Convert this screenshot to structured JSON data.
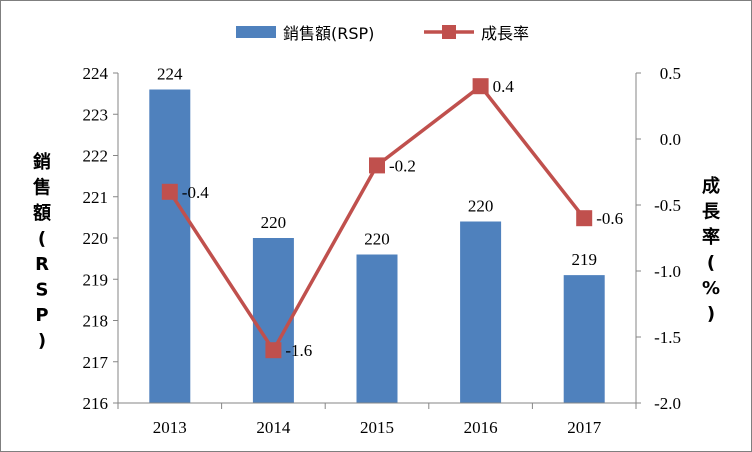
{
  "chart_data": {
    "type": "bar",
    "categories": [
      "2013",
      "2014",
      "2015",
      "2016",
      "2017"
    ],
    "series": [
      {
        "name": "銷售額(RSP)",
        "kind": "bar",
        "axis": "left",
        "color": "#4f81bd",
        "values": [
          223.6,
          220.0,
          219.6,
          220.4,
          219.1
        ],
        "data_labels": [
          "224",
          "220",
          "220",
          "220",
          "219"
        ]
      },
      {
        "name": "成長率",
        "kind": "line",
        "axis": "right",
        "color": "#c0504d",
        "marker": "square",
        "values": [
          -0.4,
          -1.6,
          -0.2,
          0.4,
          -0.6
        ],
        "data_labels": [
          "-0.4",
          "-1.6",
          "-0.2",
          "0.4",
          "-0.6"
        ]
      }
    ],
    "ylabel": "銷售額(RSP)",
    "y2label": "成長率(%)",
    "ylim": [
      216,
      224
    ],
    "y2lim": [
      -2.0,
      0.5
    ],
    "yticks": [
      "216",
      "217",
      "218",
      "219",
      "220",
      "221",
      "222",
      "223",
      "224"
    ],
    "y2ticks": [
      "0.5",
      "0.0",
      "-0.5",
      "-1.0",
      "-1.5",
      "-2.0"
    ],
    "grid": false,
    "legend_position": "top"
  }
}
